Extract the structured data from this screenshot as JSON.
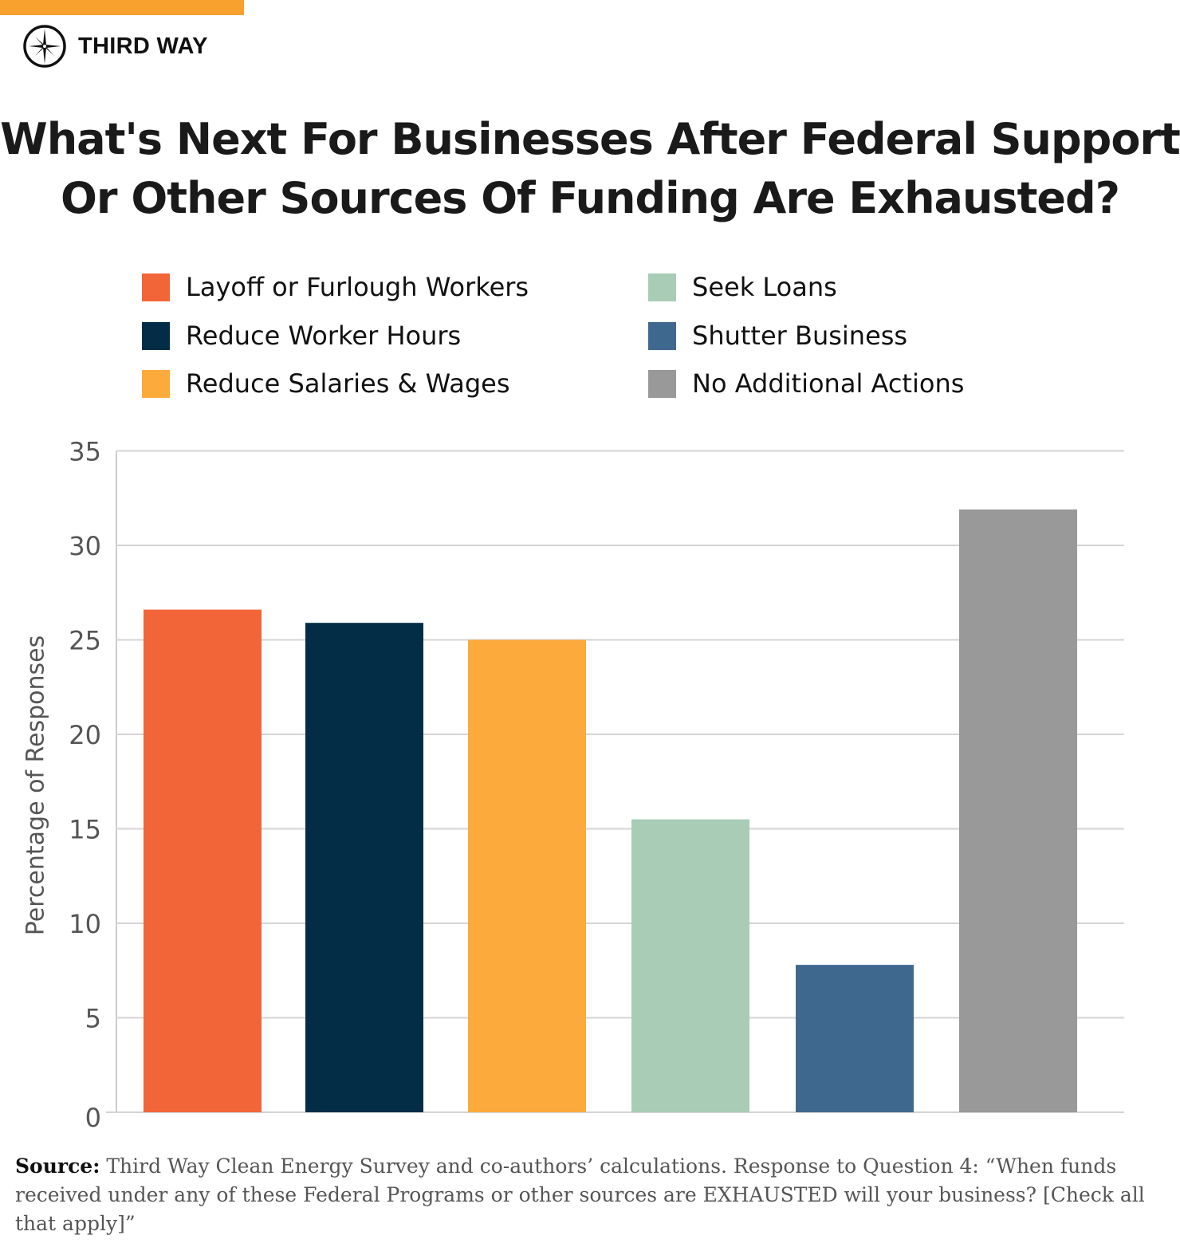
{
  "brand": {
    "name": "THIRD WAY",
    "logo_icon": "compass-star-icon",
    "accent_bar_color": "#F9A12E"
  },
  "title": {
    "line1": "What's Next For Businesses After Federal Support",
    "line2": "Or Other Sources Of Funding Are Exhausted?"
  },
  "legend": {
    "items": [
      {
        "label": "Layoff or Furlough Workers",
        "color": "#F26539"
      },
      {
        "label": "Reduce Worker Hours",
        "color": "#032D47"
      },
      {
        "label": "Reduce Salaries & Wages",
        "color": "#FCAA3C"
      },
      {
        "label": "Seek Loans",
        "color": "#A8CCB6"
      },
      {
        "label": "Shutter Business",
        "color": "#3F688F"
      },
      {
        "label": "No Additional Actions",
        "color": "#999999"
      }
    ]
  },
  "axis": {
    "ylabel": "Percentage of Responses",
    "yticks": [
      "0",
      "5",
      "10",
      "15",
      "20",
      "25",
      "30",
      "35"
    ]
  },
  "source": {
    "label": "Source:",
    "text": " Third Way Clean Energy Survey and co-authors’ calculations. Response to Question 4: “When funds received under any of these Federal Programs or other sources are EXHAUSTED will your business? [Check all that apply]”"
  },
  "chart_data": {
    "type": "bar",
    "title": "What's Next For Businesses After Federal Support Or Other Sources Of Funding Are Exhausted?",
    "categories": [
      "Layoff or Furlough Workers",
      "Reduce Worker Hours",
      "Reduce Salaries & Wages",
      "Seek Loans",
      "Shutter Business",
      "No Additional Actions"
    ],
    "values": [
      26.6,
      25.9,
      25.0,
      15.5,
      7.8,
      31.9
    ],
    "colors": [
      "#F26539",
      "#032D47",
      "#FCAA3C",
      "#A8CCB6",
      "#3F688F",
      "#999999"
    ],
    "xlabel": "",
    "ylabel": "Percentage of Responses",
    "ylim": [
      0,
      35
    ],
    "yticks": [
      0,
      5,
      10,
      15,
      20,
      25,
      30,
      35
    ],
    "grid": true,
    "legend_position": "top"
  }
}
